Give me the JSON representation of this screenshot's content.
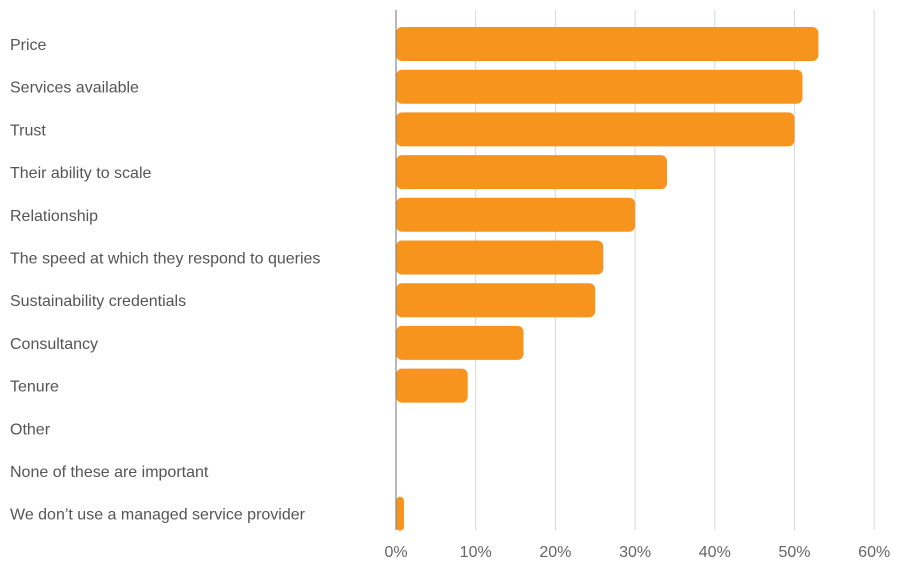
{
  "chart_data": {
    "type": "bar",
    "orientation": "horizontal",
    "categories": [
      "Price",
      "Services available",
      "Trust",
      "Their ability to scale",
      "Relationship",
      "The speed at which they respond to queries",
      "Sustainability credentials",
      "Consultancy",
      "Tenure",
      "Other",
      "None of these are important",
      "We don’t use a managed service provider"
    ],
    "values": [
      53,
      51,
      50,
      34,
      30,
      26,
      25,
      16,
      9,
      0,
      0,
      1
    ],
    "value_unit": "%",
    "xlim": [
      0,
      60
    ],
    "x_ticks": [
      "0%",
      "10%",
      "20%",
      "30%",
      "40%",
      "50%",
      "60%"
    ],
    "grid": true,
    "legend": "none",
    "bar_color": "#F7941D"
  }
}
